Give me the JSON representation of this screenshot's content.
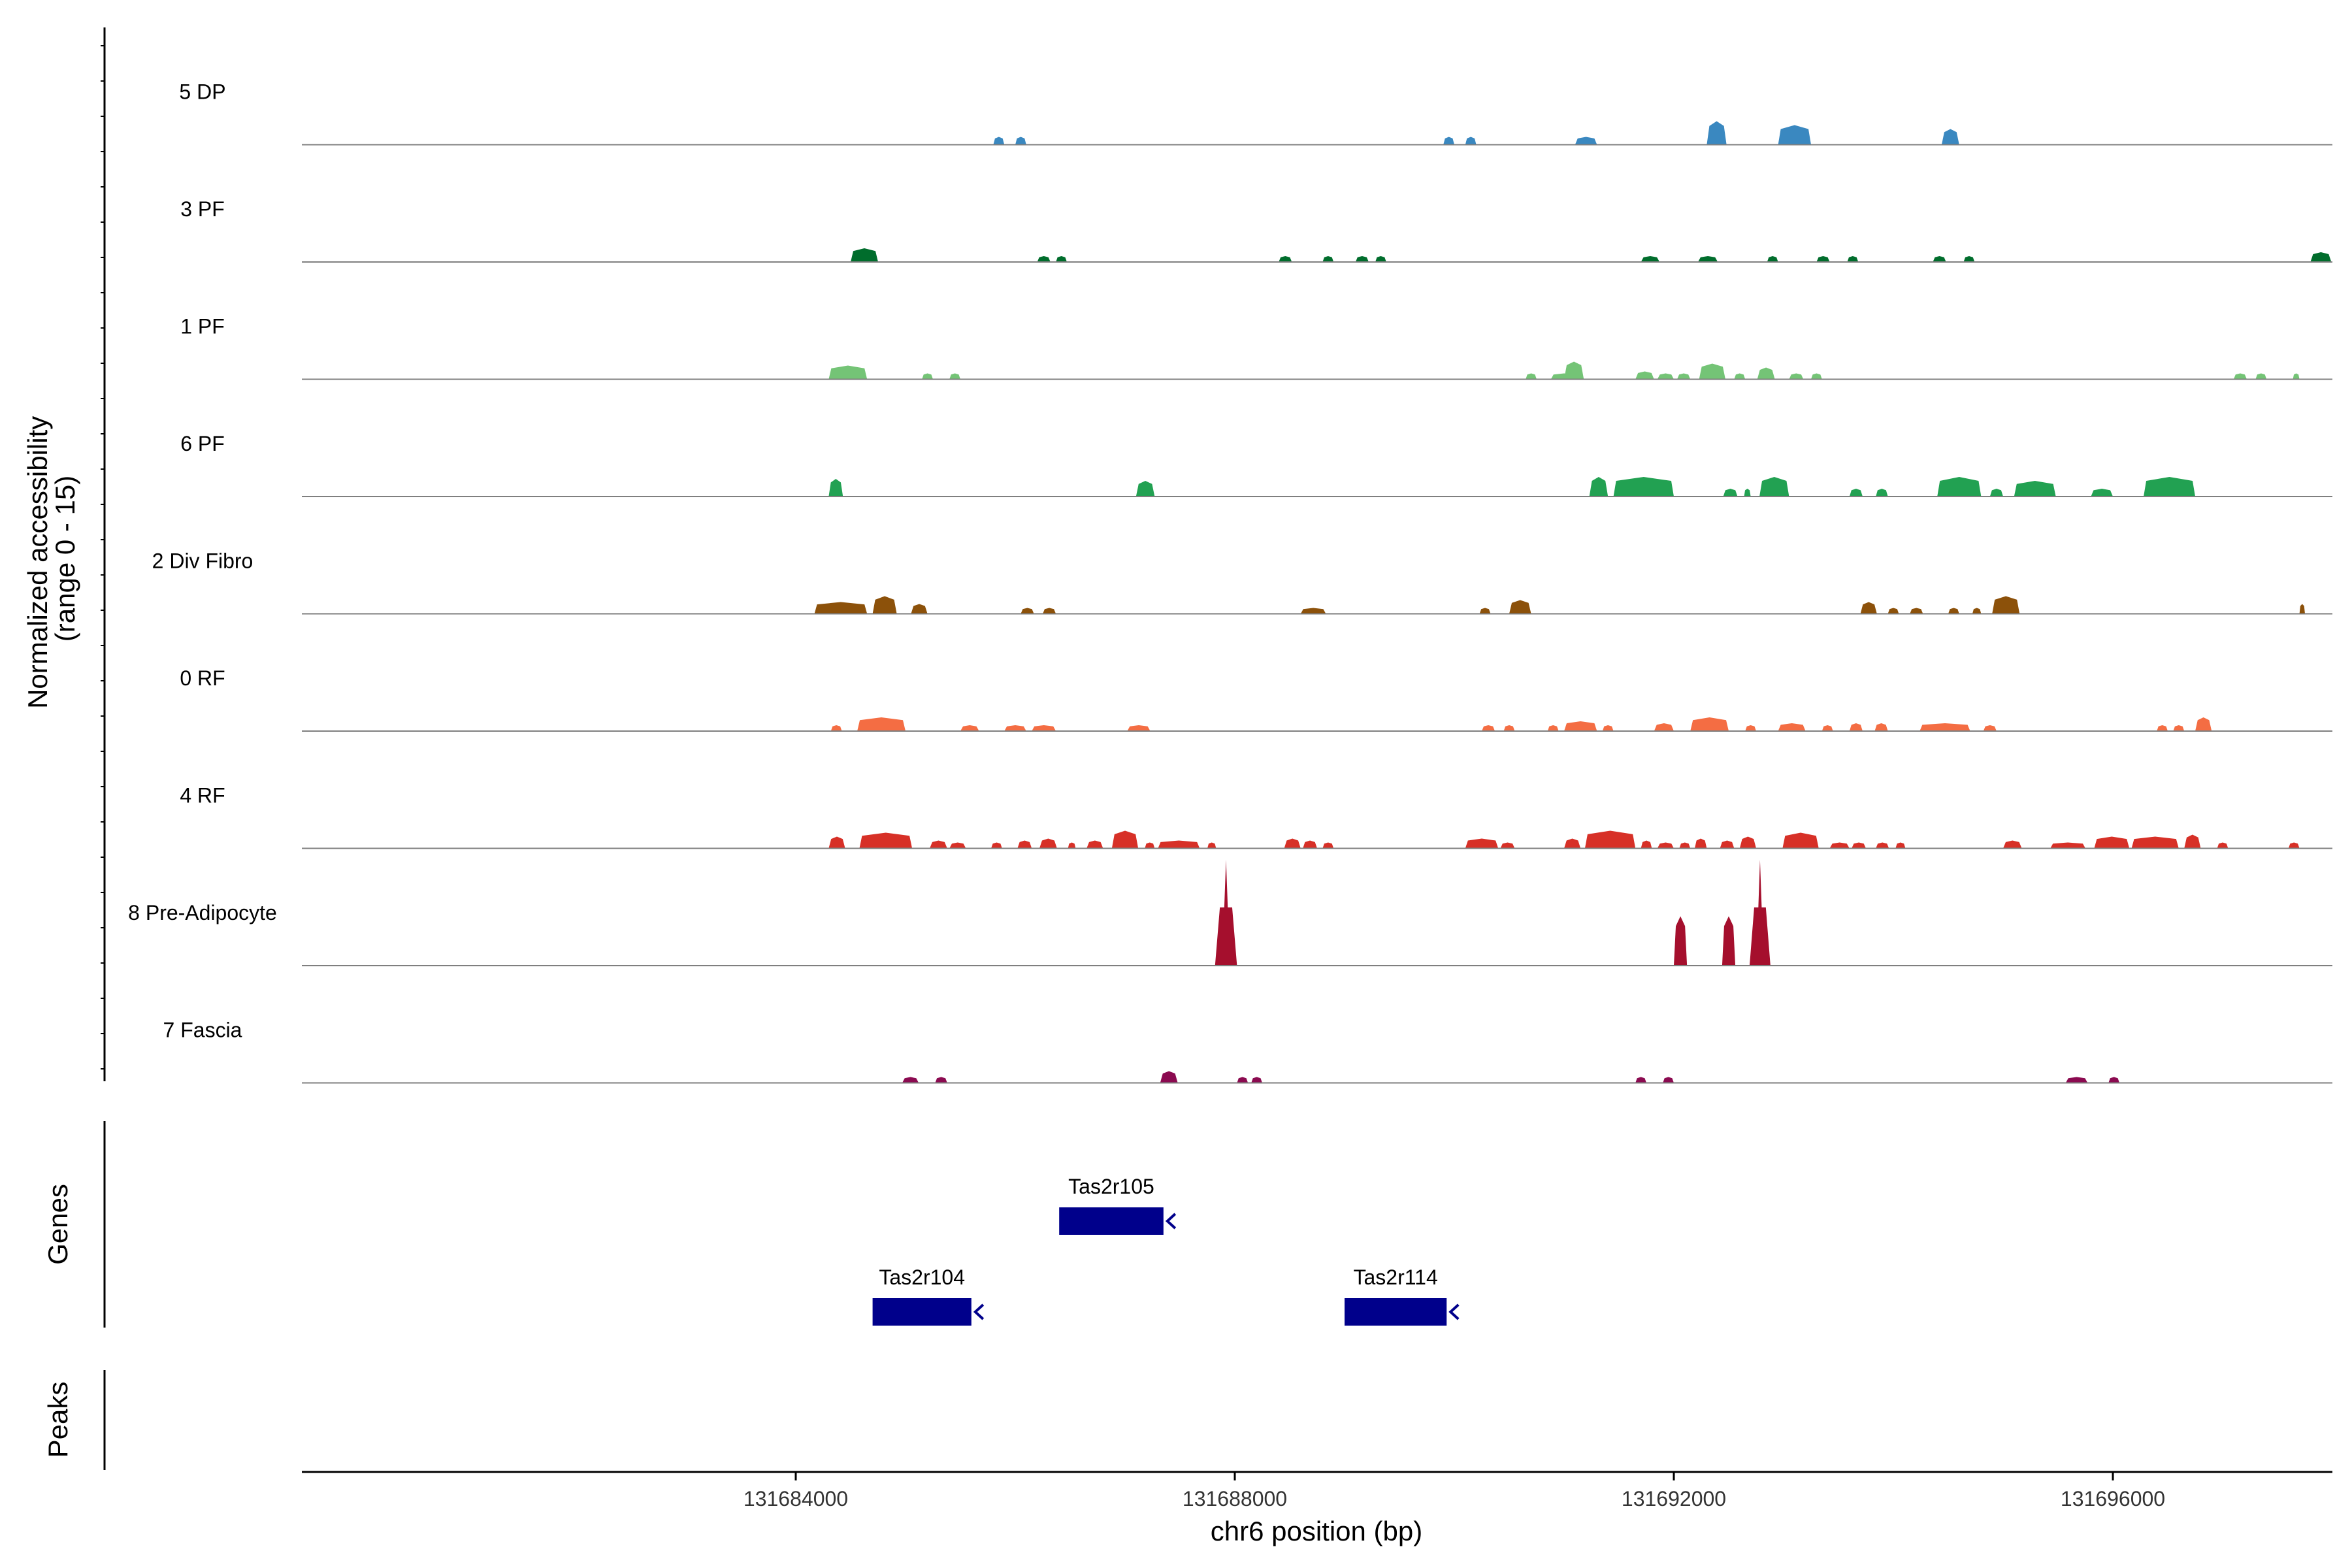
{
  "chart_data": {
    "type": "area",
    "title": "",
    "ylabel_lines": [
      "Normalized accessibility",
      "(range 0 - 15)"
    ],
    "xlabel": "chr6 position (bp)",
    "xlim": [
      131679500,
      131698000
    ],
    "x_ticks": [
      131684000,
      131688000,
      131692000,
      131696000
    ],
    "x_tick_labels": [
      "131684000",
      "131688000",
      "131692000",
      "131696000"
    ],
    "ylim": [
      0,
      15
    ],
    "tracks": [
      {
        "name": "5 DP",
        "color": "#3A88C0",
        "peaks": [
          [
            131685800,
            131685900,
            2.0
          ],
          [
            131686000,
            131686100,
            2.0
          ],
          [
            131689900,
            131690000,
            2.0
          ],
          [
            131690100,
            131690200,
            2.0
          ],
          [
            131691100,
            131691300,
            2.0
          ],
          [
            131692300,
            131692480,
            6.0
          ],
          [
            131692950,
            131693250,
            5.0
          ],
          [
            131694440,
            131694600,
            4.0
          ]
        ]
      },
      {
        "name": "3 PF",
        "color": "#006D2C",
        "peaks": [
          [
            131684500,
            131684750,
            3.5
          ],
          [
            131686200,
            131686320,
            1.5
          ],
          [
            131686370,
            131686470,
            1.5
          ],
          [
            131688400,
            131688520,
            1.5
          ],
          [
            131688800,
            131688900,
            1.5
          ],
          [
            131689100,
            131689220,
            1.5
          ],
          [
            131689280,
            131689380,
            1.5
          ],
          [
            131691700,
            131691870,
            1.5
          ],
          [
            131692220,
            131692400,
            1.5
          ],
          [
            131692850,
            131692950,
            1.5
          ],
          [
            131693300,
            131693420,
            1.5
          ],
          [
            131693580,
            131693680,
            1.5
          ],
          [
            131694360,
            131694480,
            1.5
          ],
          [
            131694640,
            131694740,
            1.5
          ],
          [
            131697800,
            131697990,
            2.5
          ]
        ]
      },
      {
        "name": "1 PF",
        "color": "#74C476",
        "peaks": [
          [
            131684300,
            131684650,
            3.5
          ],
          [
            131685150,
            131685250,
            1.5
          ],
          [
            131685400,
            131685500,
            1.5
          ],
          [
            131690880,
            131691120,
            1.5
          ],
          [
            131690650,
            131690750,
            1.5
          ],
          [
            131691000,
            131691180,
            4.5
          ],
          [
            131691650,
            131691820,
            2.0
          ],
          [
            131691850,
            131692000,
            1.5
          ],
          [
            131692030,
            131692150,
            1.5
          ],
          [
            131692230,
            131692470,
            4.0
          ],
          [
            131692550,
            131692650,
            1.5
          ],
          [
            131692760,
            131692920,
            3.0
          ],
          [
            131693050,
            131693180,
            1.5
          ],
          [
            131693250,
            131693350,
            1.5
          ],
          [
            131697100,
            131697220,
            1.5
          ],
          [
            131697300,
            131697400,
            1.5
          ],
          [
            131697640,
            131697700,
            1.5
          ]
        ]
      },
      {
        "name": "6 PF",
        "color": "#22A152",
        "peaks": [
          [
            131684300,
            131684430,
            4.5
          ],
          [
            131687100,
            131687270,
            4.0
          ],
          [
            131691230,
            131691400,
            5.0
          ],
          [
            131691450,
            131692000,
            5.0
          ],
          [
            131692450,
            131692580,
            2.0
          ],
          [
            131692640,
            131692700,
            2.0
          ],
          [
            131692780,
            131693050,
            5.0
          ],
          [
            131693600,
            131693720,
            2.0
          ],
          [
            131693840,
            131693950,
            2.0
          ],
          [
            131694400,
            131694800,
            5.0
          ],
          [
            131694880,
            131695000,
            2.0
          ],
          [
            131695100,
            131695480,
            4.0
          ],
          [
            131695800,
            131696000,
            2.0
          ],
          [
            131696280,
            131696750,
            5.0
          ]
        ]
      },
      {
        "name": "2 Div Fibro",
        "color": "#8C510A",
        "peaks": [
          [
            131684170,
            131684650,
            3.0
          ],
          [
            131684700,
            131684920,
            4.5
          ],
          [
            131685050,
            131685200,
            2.5
          ],
          [
            131686050,
            131686170,
            1.5
          ],
          [
            131686250,
            131686370,
            1.5
          ],
          [
            131688600,
            131688830,
            1.5
          ],
          [
            131690230,
            131690330,
            1.5
          ],
          [
            131690500,
            131690700,
            3.5
          ],
          [
            131693700,
            131693850,
            3.0
          ],
          [
            131693950,
            131694050,
            1.5
          ],
          [
            131694150,
            131694270,
            1.5
          ],
          [
            131694500,
            131694600,
            1.5
          ],
          [
            131694720,
            131694800,
            1.5
          ],
          [
            131694900,
            131695150,
            4.5
          ],
          [
            131697700,
            131697750,
            2.5
          ]
        ]
      },
      {
        "name": "0 RF",
        "color": "#F46D43",
        "peaks": [
          [
            131684320,
            131684420,
            1.5
          ],
          [
            131684560,
            131685000,
            3.5
          ],
          [
            131685500,
            131685670,
            1.5
          ],
          [
            131685900,
            131686100,
            1.5
          ],
          [
            131686150,
            131686370,
            1.5
          ],
          [
            131687020,
            131687230,
            1.5
          ],
          [
            131690250,
            131690370,
            1.5
          ],
          [
            131690450,
            131690550,
            1.5
          ],
          [
            131690850,
            131690950,
            1.5
          ],
          [
            131691000,
            131691300,
            2.5
          ],
          [
            131691350,
            131691450,
            1.5
          ],
          [
            131691820,
            131692000,
            2.0
          ],
          [
            131692150,
            131692500,
            3.5
          ],
          [
            131692650,
            131692750,
            1.5
          ],
          [
            131692950,
            131693200,
            2.0
          ],
          [
            131693350,
            131693450,
            1.5
          ],
          [
            131693600,
            131693720,
            2.0
          ],
          [
            131693830,
            131693950,
            2.0
          ],
          [
            131694240,
            131694700,
            2.0
          ],
          [
            131694820,
            131694940,
            1.5
          ],
          [
            131696400,
            131696500,
            1.5
          ],
          [
            131696550,
            131696650,
            1.5
          ],
          [
            131696750,
            131696900,
            3.5
          ]
        ]
      },
      {
        "name": "4 RF",
        "color": "#D73027",
        "peaks": [
          [
            131684300,
            131684450,
            3.0
          ],
          [
            131684580,
            131685060,
            4.0
          ],
          [
            131685220,
            131685380,
            2.0
          ],
          [
            131685400,
            131685550,
            1.5
          ],
          [
            131685780,
            131685880,
            1.5
          ],
          [
            131686020,
            131686150,
            2.0
          ],
          [
            131686220,
            131686380,
            2.5
          ],
          [
            131686480,
            131686550,
            1.5
          ],
          [
            131686650,
            131686800,
            2.0
          ],
          [
            131686880,
            131687120,
            4.5
          ],
          [
            131687180,
            131687270,
            1.5
          ],
          [
            131687300,
            131687680,
            2.0
          ],
          [
            131687750,
            131687830,
            1.5
          ],
          [
            131688450,
            131688600,
            2.5
          ],
          [
            131688620,
            131688750,
            2.0
          ],
          [
            131688800,
            131688900,
            1.5
          ],
          [
            131690100,
            131690400,
            2.5
          ],
          [
            131690420,
            131690550,
            1.5
          ],
          [
            131691000,
            131691150,
            2.5
          ],
          [
            131691190,
            131691650,
            4.5
          ],
          [
            131691700,
            131691800,
            2.0
          ],
          [
            131691850,
            131692000,
            1.5
          ],
          [
            131692050,
            131692150,
            1.5
          ],
          [
            131692190,
            131692300,
            2.5
          ],
          [
            131692420,
            131692550,
            2.0
          ],
          [
            131692600,
            131692750,
            3.0
          ],
          [
            131692990,
            131693320,
            4.0
          ],
          [
            131693420,
            131693600,
            1.5
          ],
          [
            131693620,
            131693750,
            1.5
          ],
          [
            131693840,
            131693960,
            1.5
          ],
          [
            131694020,
            131694110,
            1.5
          ],
          [
            131695000,
            131695170,
            2.0
          ],
          [
            131695430,
            131695750,
            1.5
          ],
          [
            131695830,
            131696150,
            3.0
          ],
          [
            131696170,
            131696600,
            3.0
          ],
          [
            131696650,
            131696800,
            3.5
          ],
          [
            131696950,
            131697050,
            1.5
          ],
          [
            131697600,
            131697700,
            1.5
          ]
        ]
      },
      {
        "name": "8 Pre-Adipocyte",
        "color": "#A50F2D",
        "peaks": [
          [
            131687820,
            131688020,
            15.0
          ],
          [
            131692000,
            131692120,
            7.0
          ],
          [
            131692440,
            131692560,
            7.0
          ],
          [
            131692690,
            131692880,
            15.0
          ]
        ]
      },
      {
        "name": "7 Fascia",
        "color": "#8B0A50",
        "peaks": [
          [
            131684970,
            131685120,
            1.5
          ],
          [
            131685270,
            131685380,
            1.5
          ],
          [
            131687320,
            131687480,
            3.0
          ],
          [
            131688020,
            131688120,
            1.5
          ],
          [
            131688150,
            131688250,
            1.5
          ],
          [
            131691650,
            131691750,
            1.5
          ],
          [
            131691900,
            131692000,
            1.5
          ],
          [
            131695570,
            131695770,
            1.5
          ],
          [
            131695960,
            131696060,
            1.5
          ]
        ]
      }
    ],
    "genes": {
      "title": "Genes",
      "color": "#00008B",
      "items": [
        {
          "name": "Tas2r105",
          "start": 131686400,
          "end": 131687350,
          "row": 1,
          "strand": "-"
        },
        {
          "name": "Tas2r104",
          "start": 131684700,
          "end": 131685600,
          "row": 2,
          "strand": "-"
        },
        {
          "name": "Tas2r114",
          "start": 131689000,
          "end": 131689930,
          "row": 2,
          "strand": "-"
        }
      ]
    },
    "peaks_track": {
      "title": "Peaks",
      "items": []
    }
  }
}
